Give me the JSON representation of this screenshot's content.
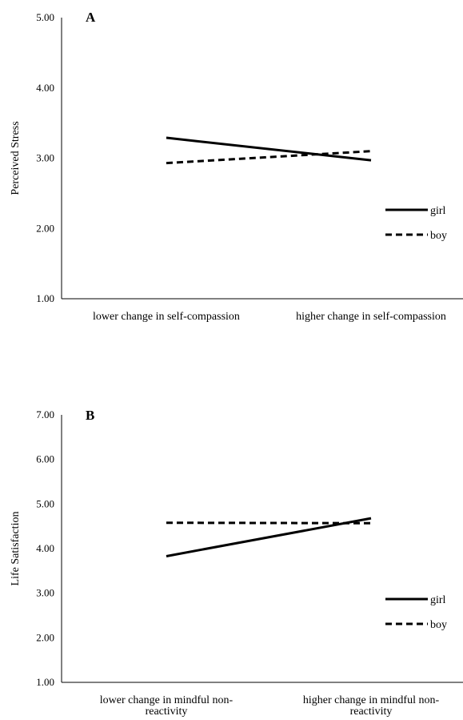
{
  "chart_data": [
    {
      "type": "line",
      "panel_label": "A",
      "ylabel": "Perceived Stress",
      "ylim": [
        1,
        5
      ],
      "yticks": [
        "1.00",
        "2.00",
        "3.00",
        "4.00",
        "5.00"
      ],
      "categories": [
        [
          "lower change in self-compassion"
        ],
        [
          "higher change in self-compassion"
        ]
      ],
      "series": [
        {
          "name": "girl",
          "style": "solid",
          "values": [
            3.29,
            2.97
          ]
        },
        {
          "name": "boy",
          "style": "dashed",
          "values": [
            2.93,
            3.1
          ]
        }
      ],
      "legend_position": "right",
      "grid": false
    },
    {
      "type": "line",
      "panel_label": "B",
      "ylabel": "Life Satisfaction",
      "ylim": [
        1,
        7
      ],
      "yticks": [
        "1.00",
        "2.00",
        "3.00",
        "4.00",
        "5.00",
        "6.00",
        "7.00"
      ],
      "categories": [
        [
          "lower change in mindful non-",
          "reactivity"
        ],
        [
          "higher change in mindful non-",
          "reactivity"
        ]
      ],
      "series": [
        {
          "name": "girl",
          "style": "solid",
          "values": [
            3.83,
            4.68
          ]
        },
        {
          "name": "boy",
          "style": "dashed",
          "values": [
            4.58,
            4.57
          ]
        }
      ],
      "legend_position": "right",
      "grid": false
    }
  ],
  "colors": {
    "line": "#000000",
    "axis": "#000000"
  }
}
